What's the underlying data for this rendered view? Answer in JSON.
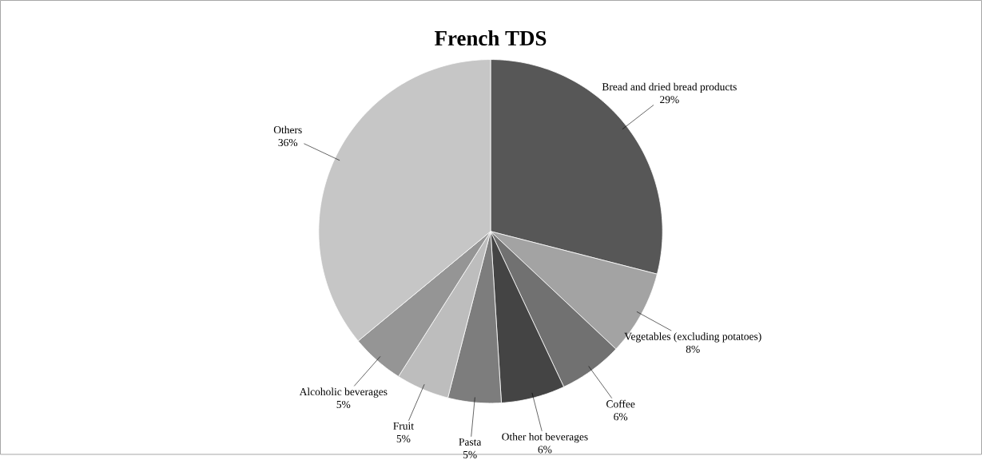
{
  "chart_data": {
    "type": "pie",
    "title": "French TDS",
    "categories": [
      "Bread and dried bread products",
      "Vegetables (excluding potatoes)",
      "Coffee",
      "Other hot beverages",
      "Pasta",
      "Fruit",
      "Alcoholic beverages",
      "Others"
    ],
    "values": [
      29,
      8,
      6,
      6,
      5,
      5,
      5,
      36
    ],
    "value_labels": [
      "29%",
      "8%",
      "6%",
      "6%",
      "5%",
      "5%",
      "5%",
      "36%"
    ],
    "colors": [
      "#575757",
      "#a3a3a3",
      "#717171",
      "#444444",
      "#7d7d7d",
      "#bdbdbd",
      "#959595",
      "#c6c6c6"
    ]
  }
}
